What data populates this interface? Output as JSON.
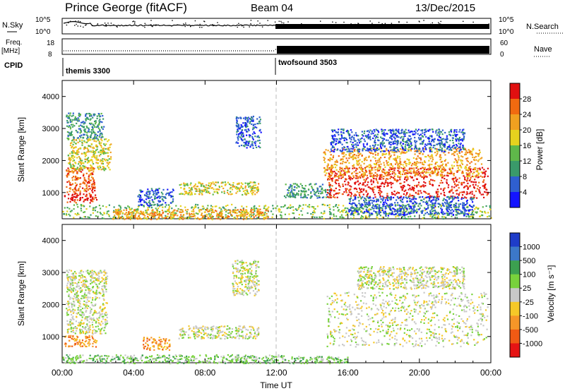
{
  "header": {
    "station": "Prince George (fitACF)",
    "beam": "Beam 04",
    "date": "13/Dec/2015"
  },
  "top_panels": {
    "nsky_label": "N.Sky",
    "nsky_ticks": [
      "10^5",
      "10^0"
    ],
    "nsearch_label": "N.Search",
    "nsearch_ticks": [
      "10^5",
      "10^0"
    ],
    "freq_label": "Freq.",
    "freq_unit": "[MHz]",
    "freq_ticks": [
      "18",
      "8"
    ],
    "nave_label": "Nave",
    "nave_ticks": [
      "60",
      "0"
    ],
    "cpid_label": "CPID",
    "cpid_segments": [
      {
        "name": "themis 3300",
        "start_hour": 0
      },
      {
        "name": "twofsound 3503",
        "start_hour": 12
      }
    ]
  },
  "chart_data": [
    {
      "type": "heatmap",
      "name": "power",
      "xlabel": "",
      "ylabel": "Slant Range [km]",
      "x_unit": "hours UT",
      "xlim": [
        0,
        24
      ],
      "ylim": [
        180,
        4500
      ],
      "yticks": [
        1000,
        2000,
        3000,
        4000
      ],
      "colorbar": {
        "label": "Power [dB]",
        "ticks": [
          "4",
          "8",
          "12",
          "16",
          "20",
          "24",
          "28"
        ],
        "colors": [
          "#1414ff",
          "#2f5fd0",
          "#3a9a6a",
          "#5fb84a",
          "#e6d21e",
          "#f0a020",
          "#f06a10",
          "#e01010"
        ]
      },
      "regions": [
        {
          "t0": 0.1,
          "t1": 1.9,
          "r0": 700,
          "r1": 1000,
          "level": 7
        },
        {
          "t0": 0.2,
          "t1": 1.8,
          "r0": 1000,
          "r1": 1800,
          "level": 6
        },
        {
          "t0": 0.3,
          "t1": 2.7,
          "r0": 1700,
          "r1": 2700,
          "level": 4
        },
        {
          "t0": 0.2,
          "t1": 2.3,
          "r0": 2700,
          "r1": 3500,
          "level": 2
        },
        {
          "t0": 0.0,
          "t1": 24.0,
          "r0": 200,
          "r1": 650,
          "level": 3
        },
        {
          "t0": 2.8,
          "t1": 11.5,
          "r0": 180,
          "r1": 500,
          "level": 5
        },
        {
          "t0": 4.2,
          "t1": 6.2,
          "r0": 600,
          "r1": 1150,
          "level": 1
        },
        {
          "t0": 6.5,
          "t1": 11.0,
          "r0": 950,
          "r1": 1350,
          "level": 4
        },
        {
          "t0": 9.7,
          "t1": 11.1,
          "r0": 2400,
          "r1": 3400,
          "level": 1
        },
        {
          "t0": 12.4,
          "t1": 15.0,
          "r0": 850,
          "r1": 1300,
          "level": 2
        },
        {
          "t0": 14.8,
          "t1": 23.8,
          "r0": 850,
          "r1": 1800,
          "level": 7
        },
        {
          "t0": 14.6,
          "t1": 23.5,
          "r0": 1500,
          "r1": 2400,
          "level": 5
        },
        {
          "t0": 15.0,
          "t1": 22.5,
          "r0": 2300,
          "r1": 3000,
          "level": 1
        },
        {
          "t0": 16.0,
          "t1": 23.0,
          "r0": 300,
          "r1": 900,
          "level": 1
        }
      ]
    },
    {
      "type": "heatmap",
      "name": "velocity",
      "xlabel": "Time UT",
      "ylabel": "Slant Range [km]",
      "x_unit": "hours UT",
      "xlim": [
        0,
        24
      ],
      "ylim": [
        180,
        4500
      ],
      "yticks": [
        1000,
        2000,
        3000,
        4000
      ],
      "xticks": [
        "00:00",
        "04:00",
        "08:00",
        "12:00",
        "16:00",
        "20:00",
        "00:00"
      ],
      "colorbar": {
        "label": "Velocity [m s⁻¹]",
        "ticks": [
          "1000",
          "500",
          "100",
          "25",
          "-25",
          "-100",
          "-500",
          "-1000"
        ],
        "colors": [
          "#1e3cc8",
          "#3c78c8",
          "#3ca050",
          "#78d23c",
          "#c8c8c8",
          "#f5c828",
          "#f59628",
          "#f05a14",
          "#e61414"
        ]
      },
      "regions": [
        {
          "t0": 0.1,
          "t1": 1.9,
          "r0": 700,
          "r1": 1050,
          "level": 6
        },
        {
          "t0": 0.2,
          "t1": 2.5,
          "r0": 1100,
          "r1": 3100,
          "level": 4
        },
        {
          "t0": 0.0,
          "t1": 12.5,
          "r0": 180,
          "r1": 450,
          "level": 3
        },
        {
          "t0": 4.5,
          "t1": 6.0,
          "r0": 600,
          "r1": 1000,
          "level": 6
        },
        {
          "t0": 6.5,
          "t1": 11.0,
          "r0": 950,
          "r1": 1350,
          "level": 4
        },
        {
          "t0": 9.5,
          "t1": 11.0,
          "r0": 2300,
          "r1": 3400,
          "level": 4
        },
        {
          "t0": 12.5,
          "t1": 16.0,
          "r0": 180,
          "r1": 400,
          "level": 3
        },
        {
          "t0": 14.8,
          "t1": 23.8,
          "r0": 700,
          "r1": 2400,
          "level": 4
        },
        {
          "t0": 16.5,
          "t1": 22.5,
          "r0": 2500,
          "r1": 3200,
          "level": 4
        }
      ]
    }
  ]
}
